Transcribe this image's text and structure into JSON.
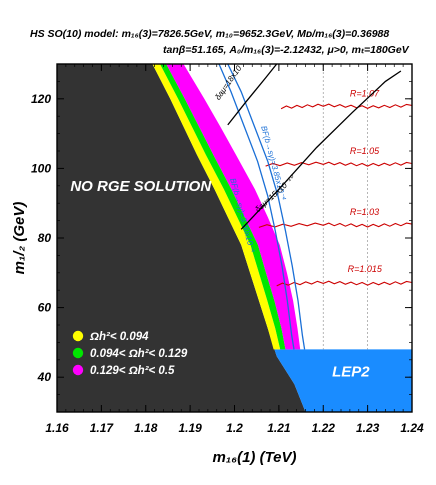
{
  "header": {
    "line1": "HS SO(10) model:  m₁₆(3)=7826.5GeV, m₁₀=9652.3GeV, Mᴅ/m₁₆(3)=0.36988",
    "line2": "tanβ=51.165, A₀/m₁₆(3)=-2.12432, μ>0, mₜ=180GeV"
  },
  "chart_data": {
    "type": "scatter",
    "title": "",
    "xlabel": "m₁₆(1) (TeV)",
    "ylabel": "m₁/₂ (GeV)",
    "xlim": [
      1.16,
      1.24
    ],
    "ylim": [
      30,
      130
    ],
    "xticks": [
      1.16,
      1.17,
      1.18,
      1.19,
      1.2,
      1.21,
      1.22,
      1.23,
      1.24
    ],
    "xtick_labels": [
      "1.16",
      "1.17",
      "1.18",
      "1.19",
      "1.2",
      "1.21",
      "1.22",
      "1.23",
      "1.24"
    ],
    "yticks": [
      40,
      60,
      80,
      100,
      120
    ],
    "ytick_labels": [
      "40",
      "60",
      "80",
      "100",
      "120"
    ],
    "colors": {
      "no_rge": "#333333",
      "lep2": "#1a8cff",
      "omega_low": "#ffff00",
      "omega_mid": "#00e600",
      "omega_high": "#ff00ff",
      "bf_contour": "#1a6fd6",
      "r_contour": "#cc0000",
      "delta_a_contour": "#000000",
      "frame": "#000000"
    },
    "regions": [
      {
        "name": "NO RGE SOLUTION",
        "label": "NO RGE SOLUTION",
        "label_at": [
          1.163,
          93.5
        ],
        "polygon": [
          [
            1.16,
            30
          ],
          [
            1.16,
            130
          ],
          [
            1.1815,
            130
          ],
          [
            1.1855,
            120
          ],
          [
            1.1885,
            112
          ],
          [
            1.1915,
            104
          ],
          [
            1.1955,
            94
          ],
          [
            1.1985,
            86
          ],
          [
            1.2015,
            78
          ],
          [
            1.2035,
            70
          ],
          [
            1.2055,
            62
          ],
          [
            1.2075,
            54
          ],
          [
            1.2095,
            46
          ],
          [
            1.2135,
            38
          ],
          [
            1.216,
            30
          ]
        ]
      },
      {
        "name": "LEP2",
        "label": "LEP2",
        "label_at": [
          1.222,
          40.2
        ],
        "polygon": [
          [
            1.209,
            48
          ],
          [
            1.24,
            48
          ],
          [
            1.24,
            30
          ],
          [
            1.216,
            30
          ],
          [
            1.2135,
            38
          ],
          [
            1.2095,
            46
          ]
        ]
      }
    ],
    "bands": [
      {
        "name": "Ωh² < 0.094",
        "color_key": "omega_low",
        "inner": [
          [
            1.1815,
            130
          ],
          [
            1.1855,
            120
          ],
          [
            1.1885,
            112
          ],
          [
            1.1915,
            104
          ],
          [
            1.1955,
            94
          ],
          [
            1.1985,
            86
          ],
          [
            1.2015,
            78
          ],
          [
            1.2035,
            70
          ],
          [
            1.2055,
            62
          ],
          [
            1.2075,
            54
          ],
          [
            1.2088,
            48
          ]
        ],
        "outer": [
          [
            1.1832,
            130
          ],
          [
            1.1873,
            120
          ],
          [
            1.1904,
            112
          ],
          [
            1.1935,
            104
          ],
          [
            1.1976,
            94
          ],
          [
            1.2006,
            86
          ],
          [
            1.2036,
            78
          ],
          [
            1.2055,
            70
          ],
          [
            1.2074,
            62
          ],
          [
            1.2092,
            54
          ],
          [
            1.2103,
            48
          ]
        ]
      },
      {
        "name": "0.094 < Ωh² < 0.129",
        "color_key": "omega_mid",
        "inner": [
          [
            1.1832,
            130
          ],
          [
            1.1873,
            120
          ],
          [
            1.1904,
            112
          ],
          [
            1.1935,
            104
          ],
          [
            1.1976,
            94
          ],
          [
            1.2006,
            86
          ],
          [
            1.2036,
            78
          ],
          [
            1.2055,
            70
          ],
          [
            1.2074,
            62
          ],
          [
            1.2092,
            54
          ],
          [
            1.2103,
            48
          ]
        ],
        "outer": [
          [
            1.1846,
            130
          ],
          [
            1.1888,
            120
          ],
          [
            1.192,
            112
          ],
          [
            1.1952,
            104
          ],
          [
            1.1993,
            94
          ],
          [
            1.2023,
            86
          ],
          [
            1.2053,
            78
          ],
          [
            1.2071,
            70
          ],
          [
            1.209,
            62
          ],
          [
            1.2106,
            54
          ],
          [
            1.2115,
            48
          ]
        ]
      },
      {
        "name": "0.129 < Ωh² < 0.5",
        "color_key": "omega_high",
        "inner": [
          [
            1.1846,
            130
          ],
          [
            1.1888,
            120
          ],
          [
            1.192,
            112
          ],
          [
            1.1952,
            104
          ],
          [
            1.1993,
            94
          ],
          [
            1.2023,
            86
          ],
          [
            1.2053,
            78
          ],
          [
            1.2071,
            70
          ],
          [
            1.209,
            62
          ],
          [
            1.2106,
            54
          ],
          [
            1.2115,
            48
          ]
        ],
        "outer": [
          [
            1.1885,
            130
          ],
          [
            1.1932,
            120
          ],
          [
            1.1968,
            112
          ],
          [
            1.2003,
            104
          ],
          [
            1.2046,
            94
          ],
          [
            1.2075,
            86
          ],
          [
            1.2102,
            78
          ],
          [
            1.2118,
            70
          ],
          [
            1.2132,
            62
          ],
          [
            1.2142,
            54
          ],
          [
            1.2148,
            48
          ]
        ]
      }
    ],
    "legend": [
      {
        "text": "Ωh²<  0.094",
        "color_key": "omega_low"
      },
      {
        "text": "0.094<  Ωh²<  0.129",
        "color_key": "omega_mid"
      },
      {
        "text": "0.129<  Ωh²<  0.5",
        "color_key": "omega_high"
      }
    ],
    "legend_placement": "lower-left",
    "r_contours": [
      {
        "label": "R=1.07",
        "label_at": [
          1.226,
          120.7
        ],
        "points": [
          [
            1.2105,
            117.5
          ],
          [
            1.22,
            118.2
          ],
          [
            1.23,
            117.6
          ],
          [
            1.24,
            118.1
          ]
        ]
      },
      {
        "label": "R=1.05",
        "label_at": [
          1.226,
          104.2
        ],
        "points": [
          [
            1.207,
            101
          ],
          [
            1.22,
            101.5
          ],
          [
            1.23,
            101
          ],
          [
            1.24,
            101.4
          ]
        ]
      },
      {
        "label": "R=1.03",
        "label_at": [
          1.226,
          86.6
        ],
        "points": [
          [
            1.2055,
            83.4
          ],
          [
            1.22,
            84
          ],
          [
            1.23,
            83.5
          ],
          [
            1.24,
            84
          ]
        ]
      },
      {
        "label": "R=1.015",
        "label_at": [
          1.2255,
          70.3
        ],
        "points": [
          [
            1.2095,
            66.6
          ],
          [
            1.22,
            67.3
          ],
          [
            1.23,
            66.8
          ],
          [
            1.24,
            67.2
          ]
        ]
      }
    ],
    "bf_contours": [
      {
        "label": "BF(b→sγ)=3.85x10⁻⁴",
        "label_at": [
          1.206,
          112
        ],
        "label_angle": 75,
        "points": [
          [
            1.1985,
            130
          ],
          [
            1.2015,
            122
          ],
          [
            1.2045,
            112
          ],
          [
            1.2075,
            102
          ],
          [
            1.2098,
            92
          ],
          [
            1.2115,
            82
          ],
          [
            1.213,
            72
          ],
          [
            1.2143,
            62
          ],
          [
            1.2153,
            52
          ],
          [
            1.2158,
            48
          ]
        ]
      },
      {
        "label": "BF(b→sγ)=3.90x10⁻⁴",
        "label_at": [
          1.199,
          97
        ],
        "label_angle": 75,
        "points": [
          [
            1.1965,
            130
          ],
          [
            1.1992,
            122
          ],
          [
            1.2022,
            112
          ],
          [
            1.2052,
            102
          ],
          [
            1.2075,
            92
          ],
          [
            1.2092,
            82
          ],
          [
            1.2107,
            72
          ],
          [
            1.2119,
            62
          ],
          [
            1.2129,
            52
          ],
          [
            1.2134,
            48
          ]
        ]
      }
    ],
    "delta_a_contours": [
      {
        "label": "δaμ=18x10⁻¹⁰",
        "label_at": [
          1.1965,
          119.5
        ],
        "label_angle": -55,
        "points": [
          [
            1.1985,
            112.5
          ],
          [
            1.2025,
            119
          ],
          [
            1.207,
            126
          ],
          [
            1.2095,
            130
          ]
        ]
      },
      {
        "label": "δaμ=15x10⁻¹⁰",
        "label_at": [
          1.2053,
          87.3
        ],
        "label_angle": -42,
        "points": [
          [
            1.2015,
            82.5
          ],
          [
            1.21,
            94
          ],
          [
            1.2185,
            106
          ],
          [
            1.2265,
            116
          ],
          [
            1.234,
            125
          ],
          [
            1.2375,
            128
          ]
        ]
      }
    ],
    "grid": false
  }
}
